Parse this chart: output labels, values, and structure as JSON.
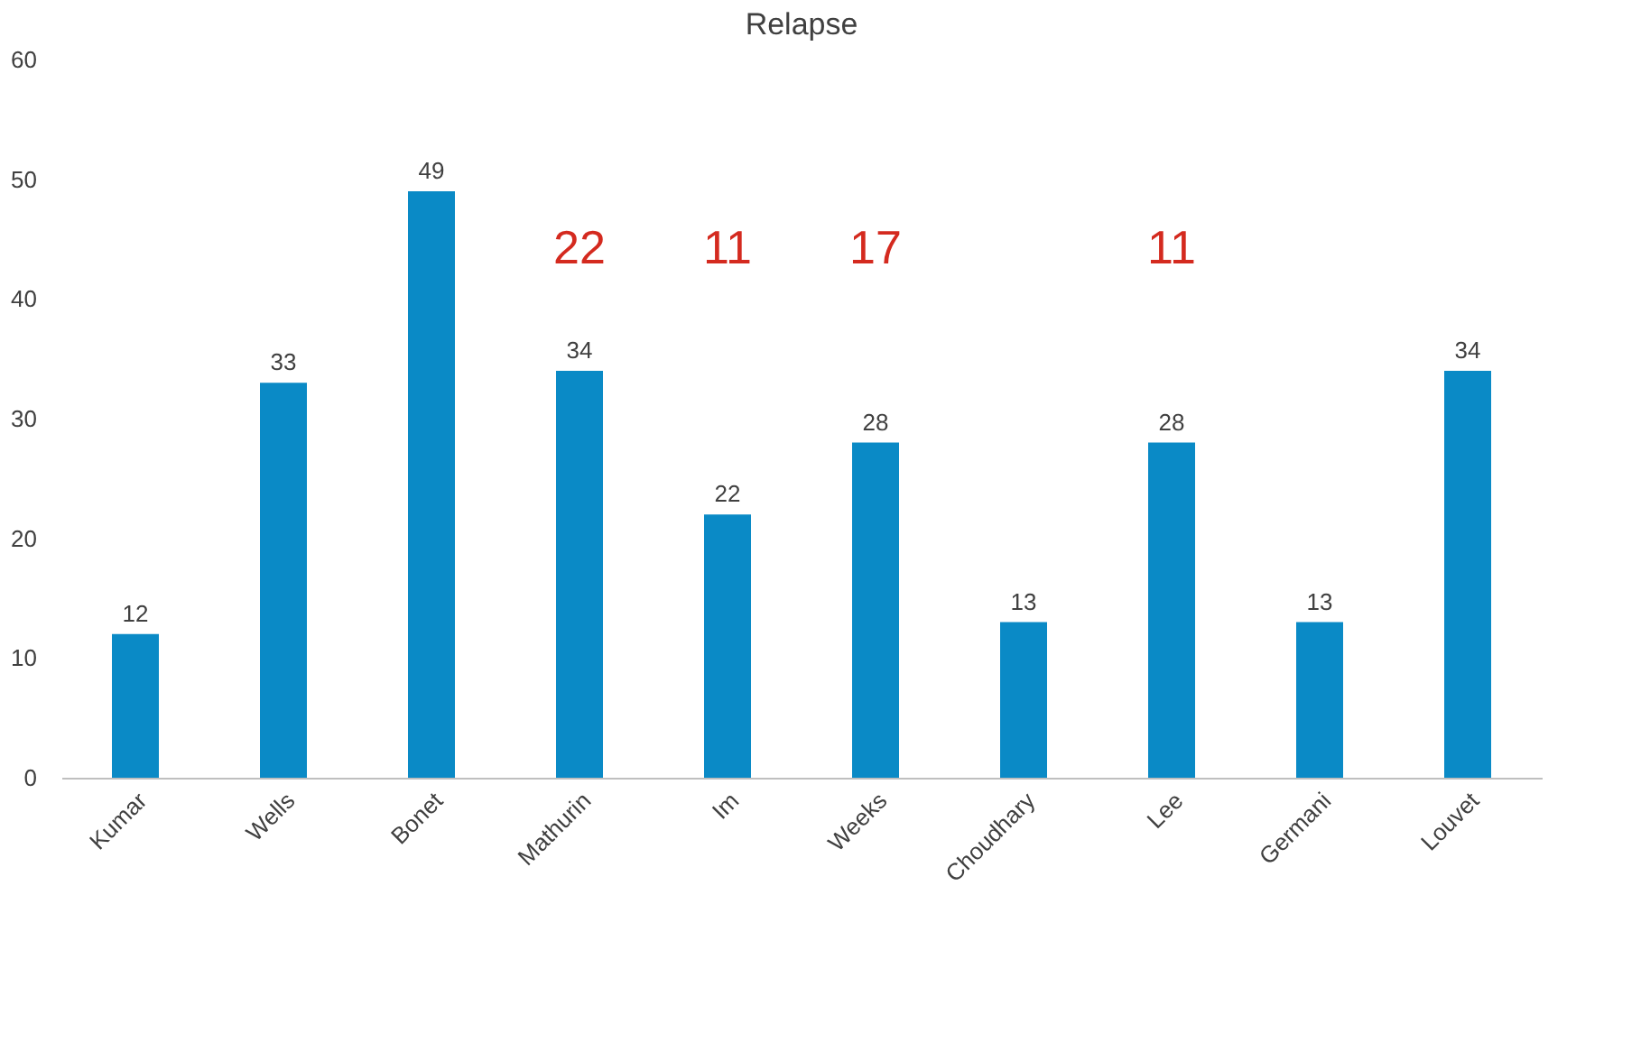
{
  "chart_data": {
    "type": "bar",
    "title": "Relapse",
    "categories": [
      "Kumar",
      "Wells",
      "Bonet",
      "Mathurin",
      "Im",
      "Weeks",
      "Choudhary",
      "Lee",
      "Germani",
      "Louvet"
    ],
    "values": [
      12,
      33,
      49,
      34,
      22,
      28,
      13,
      28,
      13,
      34
    ],
    "color": "#0a8ac6",
    "data_labels": true,
    "grid": false,
    "ylim": [
      0,
      60
    ],
    "yticks": [
      0,
      10,
      20,
      30,
      40,
      50,
      60
    ],
    "annotations": [
      "22",
      "11",
      "17",
      "11"
    ]
  }
}
